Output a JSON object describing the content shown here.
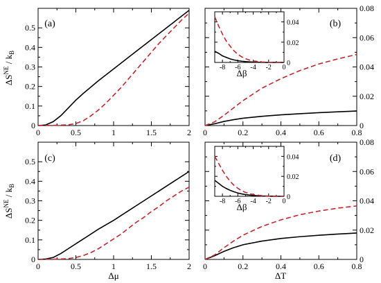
{
  "figure": {
    "ylabel_main": "ΔS",
    "ylabel_sup": "NE",
    "ylabel_tail": " / k",
    "ylabel_sub": "B",
    "xlabel_mu": "Δμ",
    "xlabel_T": "ΔT",
    "xlabel_beta": "Δβ"
  },
  "colors": {
    "solid": "#000000",
    "dashed": "#c0272d"
  },
  "chart_data": [
    {
      "id": "a",
      "type": "line",
      "label": "(a)",
      "xlim": [
        0,
        2
      ],
      "ylim": [
        0,
        0.6
      ],
      "xticks": [
        0,
        0.5,
        1,
        1.5,
        2
      ],
      "xtick_labels": [
        "0",
        "0.5",
        "1",
        "1.5",
        "2"
      ],
      "yticks": [
        0,
        0.1,
        0.2,
        0.3,
        0.4,
        0.5
      ],
      "ytick_labels": [
        "0",
        "0.1",
        "0.2",
        "0.3",
        "0.4",
        "0.5"
      ],
      "yaxis_side": "left",
      "series": [
        {
          "style": "solid",
          "x": [
            0,
            0.1,
            0.2,
            0.3,
            0.4,
            0.5,
            0.6,
            0.8,
            1.0,
            1.2,
            1.4,
            1.6,
            1.8,
            2.0
          ],
          "y": [
            0,
            0.003,
            0.02,
            0.05,
            0.09,
            0.13,
            0.165,
            0.23,
            0.29,
            0.35,
            0.41,
            0.47,
            0.53,
            0.59
          ]
        },
        {
          "style": "dashed",
          "x": [
            0,
            0.2,
            0.4,
            0.5,
            0.6,
            0.7,
            0.8,
            0.9,
            1.0,
            1.1,
            1.2,
            1.3,
            1.4,
            1.5,
            1.6,
            1.7,
            1.8,
            1.9,
            2.0
          ],
          "y": [
            0,
            0.001,
            0.004,
            0.01,
            0.025,
            0.05,
            0.08,
            0.115,
            0.155,
            0.195,
            0.24,
            0.285,
            0.33,
            0.375,
            0.42,
            0.46,
            0.5,
            0.54,
            0.575
          ]
        }
      ]
    },
    {
      "id": "b",
      "type": "line",
      "label": "(b)",
      "xlim": [
        0,
        0.8
      ],
      "ylim": [
        0,
        0.08
      ],
      "xticks": [
        0,
        0.2,
        0.4,
        0.6,
        0.8
      ],
      "xtick_labels": [
        "0",
        "0.2",
        "0.4",
        "0.6",
        "0.8"
      ],
      "yticks": [
        0,
        0.02,
        0.04,
        0.06,
        0.08
      ],
      "ytick_labels": [
        "0",
        "0.02",
        "0.04",
        "0.06",
        "0.08"
      ],
      "yaxis_side": "right",
      "series": [
        {
          "style": "solid",
          "x": [
            0,
            0.05,
            0.1,
            0.15,
            0.2,
            0.3,
            0.4,
            0.5,
            0.6,
            0.7,
            0.8
          ],
          "y": [
            0,
            0.0012,
            0.0028,
            0.004,
            0.005,
            0.0063,
            0.0073,
            0.0081,
            0.0088,
            0.0094,
            0.0099
          ]
        },
        {
          "style": "dashed",
          "x": [
            0,
            0.05,
            0.1,
            0.15,
            0.2,
            0.3,
            0.4,
            0.5,
            0.6,
            0.7,
            0.8
          ],
          "y": [
            0,
            0.0025,
            0.007,
            0.012,
            0.017,
            0.0255,
            0.032,
            0.0375,
            0.042,
            0.0455,
            0.0485
          ]
        }
      ],
      "inset": {
        "xlim": [
          -9,
          0
        ],
        "ylim": [
          0,
          0.05
        ],
        "xticks": [
          -8,
          -6,
          -4,
          -2,
          0
        ],
        "xtick_labels": [
          "-8",
          "-6",
          "-4",
          "-2",
          "0"
        ],
        "yticks": [
          0,
          0.02,
          0.04
        ],
        "ytick_labels": [
          "0",
          "0.02",
          "0.04"
        ],
        "series": [
          {
            "style": "solid",
            "x": [
              -9,
              -8.5,
              -8,
              -7.5,
              -7,
              -6.5,
              -6,
              -5.5,
              -5,
              -4,
              -3,
              -2,
              -1,
              0
            ],
            "y": [
              0.011,
              0.009,
              0.0065,
              0.005,
              0.0035,
              0.0025,
              0.0017,
              0.0012,
              0.0008,
              0.0003,
              0.0001,
              0,
              0,
              0
            ]
          },
          {
            "style": "dashed",
            "x": [
              -9,
              -8.5,
              -8,
              -7.5,
              -7,
              -6.5,
              -6,
              -5.5,
              -5,
              -4.5,
              -4,
              -3,
              -2,
              -1,
              0
            ],
            "y": [
              0.045,
              0.036,
              0.028,
              0.021,
              0.016,
              0.0115,
              0.008,
              0.0055,
              0.0037,
              0.0024,
              0.0015,
              0.0005,
              0.0001,
              0,
              0
            ]
          }
        ]
      }
    },
    {
      "id": "c",
      "type": "line",
      "label": "(c)",
      "xlim": [
        0,
        2
      ],
      "ylim": [
        0,
        0.6
      ],
      "xticks": [
        0,
        0.5,
        1,
        1.5,
        2
      ],
      "xtick_labels": [
        "0",
        "0.5",
        "1",
        "1.5",
        "2"
      ],
      "yticks": [
        0,
        0.1,
        0.2,
        0.3,
        0.4,
        0.5
      ],
      "ytick_labels": [
        "0",
        "0.1",
        "0.2",
        "0.3",
        "0.4",
        "0.5"
      ],
      "yaxis_side": "left",
      "series": [
        {
          "style": "solid",
          "x": [
            0,
            0.1,
            0.2,
            0.3,
            0.4,
            0.5,
            0.6,
            0.8,
            1.0,
            1.2,
            1.4,
            1.6,
            1.8,
            2.0
          ],
          "y": [
            0,
            0.002,
            0.01,
            0.03,
            0.055,
            0.08,
            0.105,
            0.155,
            0.2,
            0.25,
            0.3,
            0.35,
            0.4,
            0.45
          ]
        },
        {
          "style": "dashed",
          "x": [
            0,
            0.2,
            0.4,
            0.5,
            0.6,
            0.7,
            0.8,
            0.9,
            1.0,
            1.1,
            1.2,
            1.3,
            1.4,
            1.5,
            1.6,
            1.7,
            1.8,
            1.9,
            2.0
          ],
          "y": [
            0,
            0.001,
            0.004,
            0.01,
            0.02,
            0.035,
            0.055,
            0.08,
            0.105,
            0.13,
            0.16,
            0.19,
            0.215,
            0.245,
            0.27,
            0.3,
            0.325,
            0.35,
            0.37
          ]
        }
      ]
    },
    {
      "id": "d",
      "type": "line",
      "label": "(d)",
      "xlim": [
        0,
        0.8
      ],
      "ylim": [
        0,
        0.08
      ],
      "xticks": [
        0,
        0.2,
        0.4,
        0.6,
        0.8
      ],
      "xtick_labels": [
        "0",
        "0.2",
        "0.4",
        "0.6",
        "0.8"
      ],
      "yticks": [
        0,
        0.02,
        0.04,
        0.06,
        0.08
      ],
      "ytick_labels": [
        "0",
        "0.02",
        "0.04",
        "0.06",
        "0.08"
      ],
      "yaxis_side": "right",
      "series": [
        {
          "style": "solid",
          "x": [
            0,
            0.05,
            0.1,
            0.15,
            0.2,
            0.3,
            0.4,
            0.5,
            0.6,
            0.7,
            0.8
          ],
          "y": [
            0,
            0.0025,
            0.0055,
            0.008,
            0.01,
            0.0125,
            0.0143,
            0.0155,
            0.0165,
            0.0173,
            0.018
          ]
        },
        {
          "style": "dashed",
          "x": [
            0,
            0.05,
            0.1,
            0.15,
            0.2,
            0.3,
            0.4,
            0.5,
            0.6,
            0.7,
            0.8
          ],
          "y": [
            0,
            0.003,
            0.008,
            0.0125,
            0.0165,
            0.0225,
            0.027,
            0.0305,
            0.033,
            0.035,
            0.0365
          ]
        }
      ],
      "inset": {
        "xlim": [
          -9,
          0
        ],
        "ylim": [
          0,
          0.05
        ],
        "xticks": [
          -8,
          -6,
          -4,
          -2,
          0
        ],
        "xtick_labels": [
          "-8",
          "-6",
          "-4",
          "-2",
          "0"
        ],
        "yticks": [
          0,
          0.02,
          0.04
        ],
        "ytick_labels": [
          "0",
          "0.02",
          "0.04"
        ],
        "series": [
          {
            "style": "solid",
            "x": [
              -9,
              -8.5,
              -8,
              -7.5,
              -7,
              -6.5,
              -6,
              -5.5,
              -5,
              -4,
              -3,
              -2,
              -1,
              0
            ],
            "y": [
              0.016,
              0.013,
              0.01,
              0.0078,
              0.006,
              0.0045,
              0.0033,
              0.0024,
              0.0017,
              0.0008,
              0.0003,
              0.0001,
              0,
              0
            ]
          },
          {
            "style": "dashed",
            "x": [
              -9,
              -8.5,
              -8,
              -7.5,
              -7,
              -6.5,
              -6,
              -5.5,
              -5,
              -4.5,
              -4,
              -3,
              -2,
              -1,
              0
            ],
            "y": [
              0.04,
              0.033,
              0.026,
              0.02,
              0.015,
              0.011,
              0.008,
              0.0056,
              0.0039,
              0.0027,
              0.0018,
              0.0007,
              0.0002,
              0,
              0
            ]
          }
        ]
      }
    }
  ]
}
